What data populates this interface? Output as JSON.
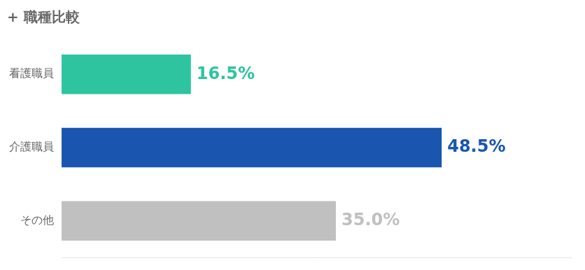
{
  "chart_data": {
    "type": "bar",
    "orientation": "horizontal",
    "title": "+ 職種比較",
    "categories": [
      "看護職員",
      "介護職員",
      "その他"
    ],
    "values": [
      16.5,
      48.5,
      35.0
    ],
    "value_labels": [
      "16.5%",
      "48.5%",
      "35.0%"
    ],
    "colors": [
      "#2ec4a0",
      "#1a56b0",
      "#c0c0c0"
    ],
    "xlim": [
      0,
      65
    ],
    "grid": false,
    "data_labels": true,
    "tick_labels": "y"
  }
}
